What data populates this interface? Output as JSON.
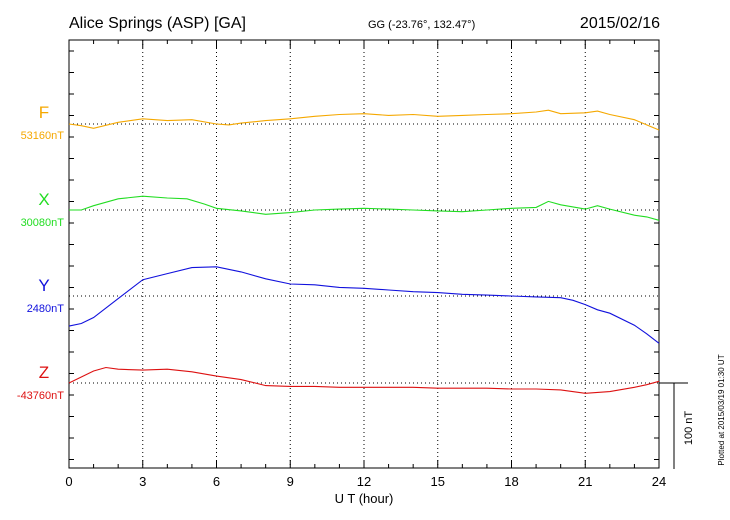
{
  "header": {
    "station": "Alice Springs (ASP)  [GA]",
    "coords": "GG (-23.76°, 132.47°)",
    "date": "2015/02/16"
  },
  "footnote": "Plotted at 2015/03/19 01:30 UT",
  "scale_bar": {
    "label": "100 nT",
    "value_nT": 100
  },
  "chart_data": {
    "type": "line",
    "title": "Alice Springs (ASP)  [GA]",
    "xlabel": "U T (hour)",
    "ylabel": "",
    "xlim": [
      0,
      24
    ],
    "x_ticks": [
      "0",
      "3",
      "6",
      "9",
      "12",
      "15",
      "18",
      "21",
      "24"
    ],
    "grid": true,
    "series": [
      {
        "name": "F",
        "baseline_label": "53160nT",
        "baseline": 53160,
        "color": "#f5a800",
        "x": [
          0,
          0.5,
          1,
          2,
          3,
          4,
          5,
          6,
          6.5,
          7,
          8,
          9,
          10,
          11,
          12,
          13,
          14,
          15,
          16,
          17,
          18,
          19,
          19.5,
          20,
          21,
          21.5,
          22,
          23,
          23.5,
          24
        ],
        "y": [
          53160,
          53158,
          53155,
          53162,
          53166,
          53164,
          53165,
          53160,
          53159,
          53161,
          53164,
          53166,
          53169,
          53171,
          53172,
          53170,
          53171,
          53169,
          53170,
          53171,
          53172,
          53174,
          53176,
          53172,
          53173,
          53175,
          53171,
          53165,
          53159,
          53153
        ]
      },
      {
        "name": "X",
        "baseline_label": "30080nT",
        "baseline": 30080,
        "color": "#22dd22",
        "x": [
          0,
          0.5,
          1,
          2,
          3,
          4,
          4.8,
          5.5,
          6,
          7,
          8,
          9,
          10,
          11,
          12,
          13,
          14,
          15,
          16,
          17,
          18,
          19,
          19.5,
          20,
          21,
          21.5,
          22,
          23,
          23.5,
          24
        ],
        "y": [
          30080,
          30080,
          30085,
          30093,
          30096,
          30094,
          30093,
          30087,
          30082,
          30079,
          30075,
          30077,
          30080,
          30081,
          30082,
          30081,
          30080,
          30079,
          30078,
          30080,
          30082,
          30083,
          30090,
          30086,
          30081,
          30085,
          30081,
          30074,
          30072,
          30068
        ]
      },
      {
        "name": "Y",
        "baseline_label": "2480nT",
        "baseline": 2480,
        "color": "#1111dd",
        "x": [
          0,
          0.5,
          1,
          2,
          3,
          4,
          5,
          6,
          7,
          8,
          9,
          10,
          11,
          12,
          13,
          14,
          15,
          16,
          17,
          18,
          19,
          20,
          20.5,
          21,
          21.5,
          22,
          23,
          23.5,
          24
        ],
        "y": [
          2445,
          2448,
          2455,
          2477,
          2499,
          2506,
          2513,
          2514,
          2508,
          2500,
          2494,
          2493,
          2490,
          2489,
          2487,
          2485,
          2484,
          2482,
          2481,
          2480,
          2479,
          2478,
          2475,
          2470,
          2464,
          2460,
          2446,
          2436,
          2425
        ]
      },
      {
        "name": "Z",
        "baseline_label": "-43760nT",
        "baseline": -43760,
        "color": "#dd1111",
        "x": [
          0,
          0.5,
          1,
          1.5,
          2,
          3,
          4,
          5,
          6,
          7,
          8,
          9,
          10,
          11,
          12,
          13,
          14,
          15,
          16,
          17,
          18,
          19,
          20,
          21,
          22,
          23,
          23.5,
          24
        ],
        "y": [
          -43760,
          -43753,
          -43746,
          -43742,
          -43744,
          -43745,
          -43744,
          -43747,
          -43752,
          -43756,
          -43763,
          -43764,
          -43764,
          -43765,
          -43765,
          -43765,
          -43765,
          -43766,
          -43766,
          -43766,
          -43767,
          -43767,
          -43768,
          -43772,
          -43770,
          -43765,
          -43762,
          -43758
        ]
      }
    ]
  }
}
